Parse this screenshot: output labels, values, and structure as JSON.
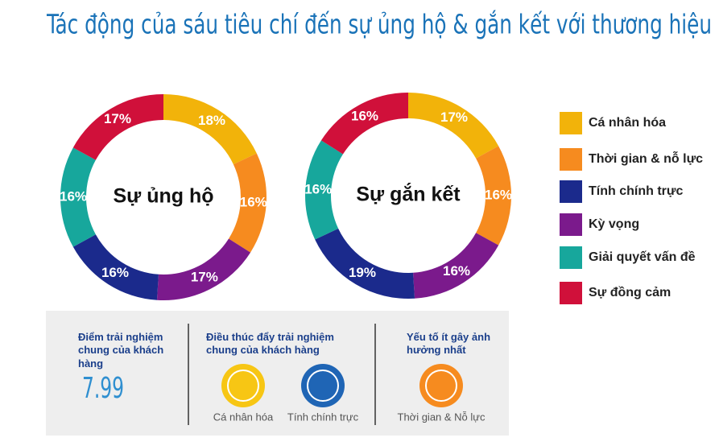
{
  "title": "Tác động của sáu tiêu chí đến sự ủng hộ & gắn kết với thương hiệu",
  "chart_data": [
    {
      "type": "donut",
      "center_label": "Sự ủng hộ",
      "values": [
        18,
        16,
        17,
        16,
        16,
        17
      ],
      "value_labels": [
        "18%",
        "16%",
        "17%",
        "16%",
        "16%",
        "17%"
      ],
      "colors": [
        "#f2b30a",
        "#f68b1f",
        "#7b1a8c",
        "#1b2a8c",
        "#17a79c",
        "#d0103a"
      ]
    },
    {
      "type": "donut",
      "center_label": "Sự gắn kết",
      "values": [
        17,
        16,
        16,
        19,
        16,
        16
      ],
      "value_labels": [
        "17%",
        "16%",
        "16%",
        "19%",
        "16%",
        "16%"
      ],
      "colors": [
        "#f2b30a",
        "#f68b1f",
        "#7b1a8c",
        "#1b2a8c",
        "#17a79c",
        "#d0103a"
      ]
    }
  ],
  "legend": [
    {
      "label": "Cá nhân hóa",
      "color": "#f2b30a"
    },
    {
      "label": "Thời gian & nỗ lực",
      "color": "#f68b1f"
    },
    {
      "label": "Tính chính trực",
      "color": "#1b2a8c"
    },
    {
      "label": "Kỳ vọng",
      "color": "#7b1a8c"
    },
    {
      "label": "Giải quyết vấn đề",
      "color": "#17a79c"
    },
    {
      "label": "Sự đồng cảm",
      "color": "#d0103a"
    }
  ],
  "panel": {
    "score_title": "Điểm trải nghiệm chung của khách hàng",
    "score": "7.99",
    "drivers_title": "Điều thúc đẩy trải nghiệm chung của khách hàng",
    "drivers": [
      "Cá nhân hóa",
      "Tính chính trực"
    ],
    "least_title": "Yếu tố ít gây ảnh hưởng nhất",
    "least": [
      "Thời gian & Nỗ lực"
    ]
  }
}
